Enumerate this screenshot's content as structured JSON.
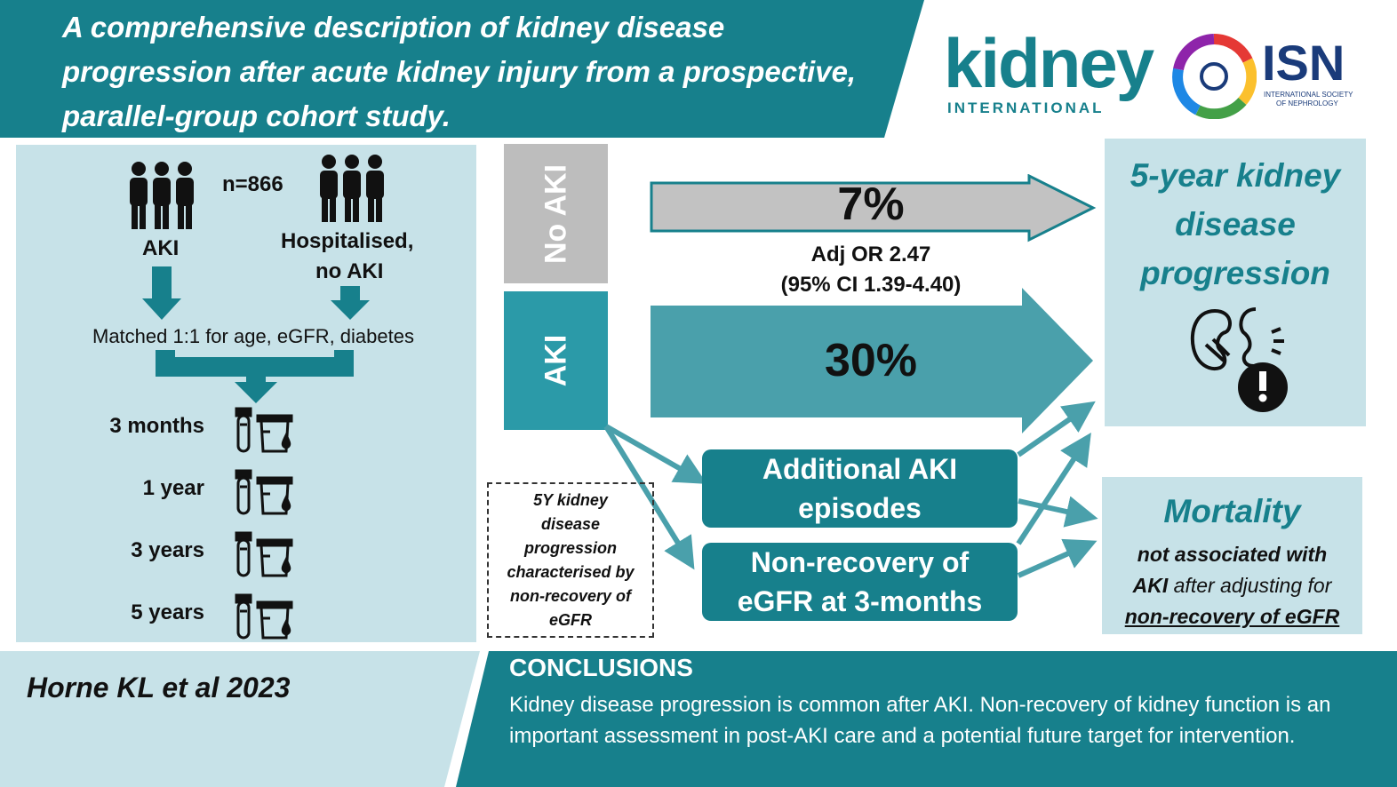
{
  "header": {
    "title": "A comprehensive description of kidney disease progression after acute kidney injury from a prospective, parallel-group cohort study."
  },
  "logos": {
    "journal_name": "kidney",
    "journal_sub": "INTERNATIONAL",
    "society_abbr": "ISN",
    "society_name_line1": "INTERNATIONAL SOCIETY",
    "society_name_line2": "OF NEPHROLOGY"
  },
  "cohort": {
    "n_label": "n=866",
    "group_aki": "AKI",
    "group_control_line1": "Hospitalised,",
    "group_control_line2": "no AKI",
    "matched_text": "Matched 1:1 for age, eGFR, diabetes",
    "timepoints": [
      "3 months",
      "1 year",
      "3 years",
      "5 years"
    ]
  },
  "results": {
    "no_aki_label": "No AKI",
    "aki_label": "AKI",
    "no_aki_pct": "7%",
    "aki_pct": "30%",
    "adj_or_line1": "Adj OR 2.47",
    "adj_or_line2": "(95% CI 1.39-4.40)"
  },
  "mediators": {
    "additional_aki_line1": "Additional AKI",
    "additional_aki_line2": "episodes",
    "nonrecovery_line1": "Non-recovery of",
    "nonrecovery_line2": "eGFR at 3-months"
  },
  "note": {
    "lines": [
      "5Y kidney",
      "disease",
      "progression",
      "characterised by",
      "non-recovery of",
      "eGFR"
    ]
  },
  "outcomes": {
    "progression_line1": "5-year kidney",
    "progression_line2": "disease",
    "progression_line3": "progression",
    "mortality_title": "Mortality",
    "mortality_line1": "not associated with",
    "mortality_line2_bold": "AKI",
    "mortality_line2_rest": " after adjusting for",
    "mortality_line3": "non-recovery of eGFR"
  },
  "citation": "Horne KL et al 2023",
  "conclusions": {
    "heading": "CONCLUSIONS",
    "text": "Kidney disease progression is common after AKI. Non-recovery of kidney function is an important assessment in post-AKI care and a potential future target for intervention."
  },
  "colors": {
    "teal": "#17808c",
    "light_teal": "#c7e2e8",
    "grey": "#bdbdbd",
    "mid_teal": "#2b9aa8"
  }
}
